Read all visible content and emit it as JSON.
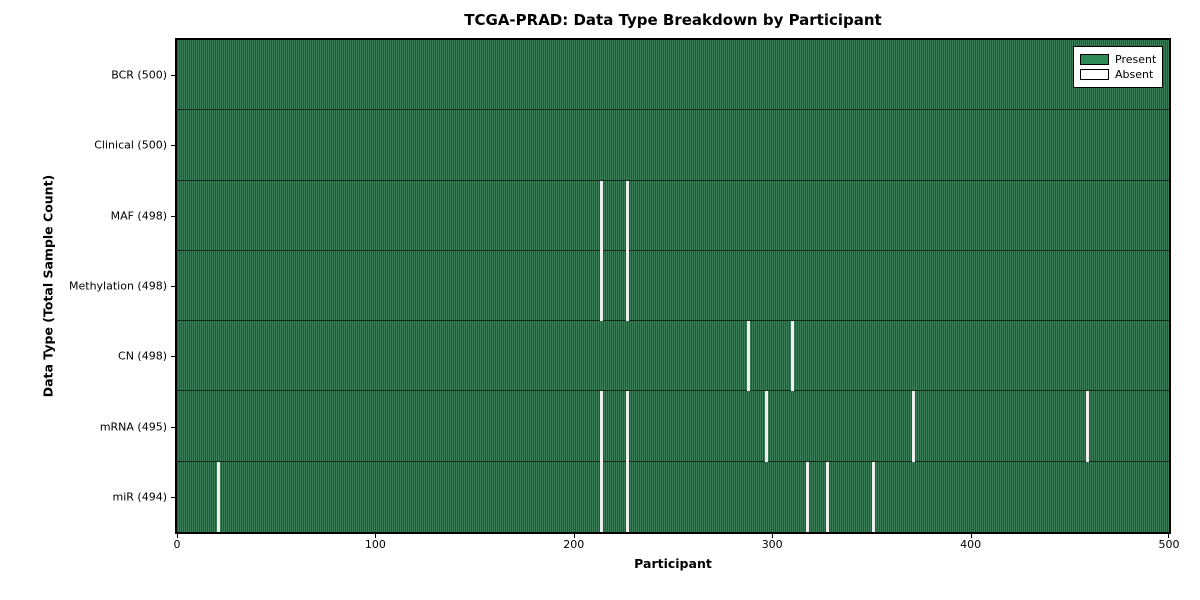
{
  "figure": {
    "title": "TCGA-PRAD: Data Type Breakdown by Participant",
    "x_label": "Participant",
    "y_label": "Data Type (Total Sample Count)"
  },
  "legend": {
    "items": [
      {
        "label": "Present",
        "color": "#2e8b57"
      },
      {
        "label": "Absent",
        "color": "#ffffff"
      }
    ]
  },
  "chart_data": {
    "type": "heatmap",
    "title": "TCGA-PRAD: Data Type Breakdown by Participant",
    "xlabel": "Participant",
    "ylabel": "Data Type (Total Sample Count)",
    "x_range": [
      0,
      500
    ],
    "x_ticks": [
      0,
      100,
      200,
      300,
      400,
      500
    ],
    "n_participants": 500,
    "legend_position": "upper right",
    "grid": false,
    "colors": {
      "present": "#2e8b57",
      "absent": "#ffffff"
    },
    "rows": [
      {
        "name": "BCR",
        "label": "BCR (500)",
        "total": 500,
        "absent_participants": []
      },
      {
        "name": "Clinical",
        "label": "Clinical (500)",
        "total": 500,
        "absent_participants": []
      },
      {
        "name": "MAF",
        "label": "MAF (498)",
        "total": 498,
        "absent_participants": [
          214,
          227
        ]
      },
      {
        "name": "Methylation",
        "label": "Methylation (498)",
        "total": 498,
        "absent_participants": [
          214,
          227
        ]
      },
      {
        "name": "CN",
        "label": "CN (498)",
        "total": 498,
        "absent_participants": [
          288,
          310
        ]
      },
      {
        "name": "mRNA",
        "label": "mRNA (495)",
        "total": 495,
        "absent_participants": [
          214,
          227,
          297,
          371,
          459
        ]
      },
      {
        "name": "miR",
        "label": "miR (494)",
        "total": 494,
        "absent_participants": [
          21,
          214,
          227,
          318,
          328,
          351
        ]
      }
    ]
  }
}
